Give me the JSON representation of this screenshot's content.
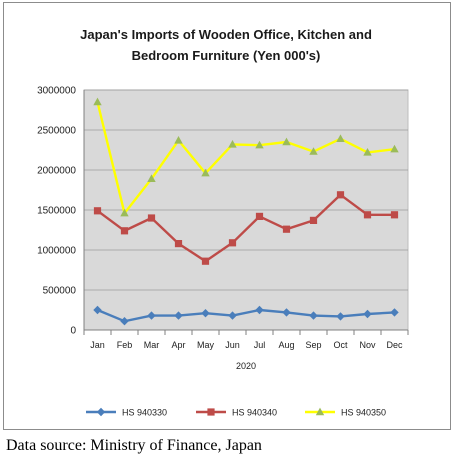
{
  "title_line1": "Japan's Imports of  Wooden  Office, Kitchen and",
  "title_line2": "Bedroom Furniture (Yen 000's)",
  "source": "Data source: Ministry of Finance, Japan",
  "chart_data": {
    "type": "line",
    "title": "Japan's Imports of Wooden Office, Kitchen and Bedroom Furniture (Yen 000's)",
    "xlabel": "2020",
    "ylabel": "",
    "categories": [
      "Jan",
      "Feb",
      "Mar",
      "Apr",
      "May",
      "Jun",
      "Jul",
      "Aug",
      "Sep",
      "Oct",
      "Nov",
      "Dec"
    ],
    "ylim": [
      0,
      3000000
    ],
    "yticks": [
      "0",
      "500000",
      "1000000",
      "1500000",
      "2000000",
      "2500000",
      "3000000"
    ],
    "grid": true,
    "legend": "bottom",
    "plot_background": "#d9d9d9",
    "series": [
      {
        "name": "HS 940330",
        "color": "#4a7ebb",
        "marker": "diamond",
        "values": [
          250000,
          110000,
          180000,
          180000,
          210000,
          180000,
          250000,
          220000,
          180000,
          170000,
          200000,
          220000
        ]
      },
      {
        "name": "HS 940340",
        "color": "#be4b48",
        "marker": "square",
        "values": [
          1490000,
          1240000,
          1400000,
          1080000,
          860000,
          1090000,
          1420000,
          1260000,
          1370000,
          1690000,
          1440000,
          1440000
        ]
      },
      {
        "name": "HS 940350",
        "color": "#ffff00",
        "marker_color": "#9bbb59",
        "marker": "triangle",
        "values": [
          2850000,
          1460000,
          1890000,
          2370000,
          1960000,
          2320000,
          2310000,
          2350000,
          2230000,
          2390000,
          2220000,
          2260000
        ]
      }
    ]
  }
}
